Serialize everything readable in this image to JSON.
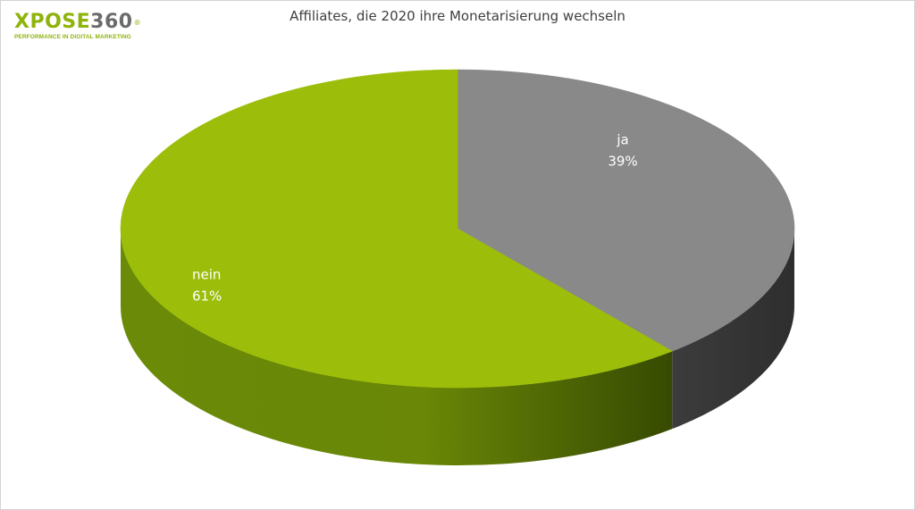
{
  "logo": {
    "word_a": "XPOSE",
    "word_b": "360",
    "registered": "®",
    "tagline": "PERFORMANCE IN DIGITAL MARKETING"
  },
  "chart_data": {
    "type": "pie",
    "style": "3d",
    "title": "Affiliates, die 2020 ihre Monetarisierung wechseln",
    "slices": [
      {
        "label": "ja",
        "value": 39,
        "display": "39%",
        "color": "#898989",
        "side_color": "#3a3a3a"
      },
      {
        "label": "nein",
        "value": 61,
        "display": "61%",
        "color": "#9cbe0a",
        "side_color": "#5d7806"
      }
    ],
    "legend": "none",
    "data_labels": "inside"
  }
}
